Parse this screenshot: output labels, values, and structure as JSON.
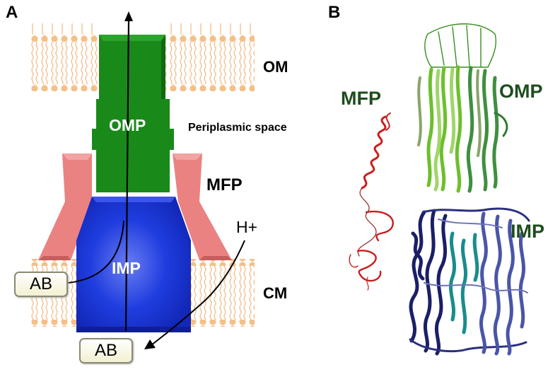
{
  "panels": {
    "a": "A",
    "b": "B"
  },
  "panel_a": {
    "membranes": {
      "outer": "OM",
      "cytoplasmic": "CM"
    },
    "space_label": "Periplasmic space",
    "components": {
      "omp": "OMP",
      "mfp": "MFP",
      "imp": "IMP"
    },
    "proton": "H+",
    "substrate_left": "AB",
    "substrate_bottom": "AB"
  },
  "panel_b": {
    "mfp": "MFP",
    "omp": "OMP",
    "imp": "IMP"
  },
  "colors": {
    "omp": "#198a19",
    "imp": "#1633d6",
    "mfp": "#ea8282",
    "lipid": "#f4c088",
    "structure_red": "#c81e1e",
    "structure_green": "#6dbf2c",
    "structure_navy": "#1b1f66",
    "structure_teal": "#1a8c8c"
  }
}
